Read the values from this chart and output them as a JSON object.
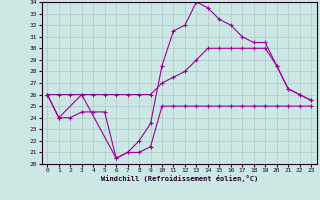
{
  "xlabel": "Windchill (Refroidissement éolien,°C)",
  "background_color": "#cce8e4",
  "grid_color": "#b0c8c8",
  "line_color": "#990099",
  "xlim": [
    -0.5,
    23.5
  ],
  "ylim": [
    20,
    34
  ],
  "yticks": [
    20,
    21,
    22,
    23,
    24,
    25,
    26,
    27,
    28,
    29,
    30,
    31,
    32,
    33,
    34
  ],
  "xticks": [
    0,
    1,
    2,
    3,
    4,
    5,
    6,
    7,
    8,
    9,
    10,
    11,
    12,
    13,
    14,
    15,
    16,
    17,
    18,
    19,
    20,
    21,
    22,
    23
  ],
  "s1_x": [
    0,
    1,
    2,
    3,
    4,
    5,
    6,
    7,
    8,
    9,
    10,
    11,
    12,
    13,
    14,
    15,
    16,
    17,
    18,
    19,
    20,
    21,
    22,
    23
  ],
  "s1_y": [
    26,
    24,
    24,
    24.5,
    24.5,
    24.5,
    20.5,
    21,
    21,
    21.5,
    25,
    25,
    25,
    25,
    25,
    25,
    25,
    25,
    25,
    25,
    25,
    25,
    25,
    25
  ],
  "s2_x": [
    0,
    1,
    2,
    3,
    4,
    5,
    6,
    7,
    8,
    9,
    10,
    11,
    12,
    13,
    14,
    15,
    16,
    17,
    18,
    19,
    20,
    21,
    22,
    23
  ],
  "s2_y": [
    26,
    26,
    26,
    26,
    26,
    26,
    26,
    26,
    26,
    26,
    27,
    27.5,
    28,
    29,
    30,
    30,
    30,
    30,
    30,
    30,
    28.5,
    26.5,
    26,
    25.5
  ],
  "s3_x": [
    0,
    1,
    3,
    6,
    7,
    8,
    9,
    10,
    11,
    12,
    13,
    14,
    15,
    16,
    17,
    18,
    19,
    20,
    21,
    22,
    23
  ],
  "s3_y": [
    26,
    24,
    26,
    20.5,
    21,
    22,
    23.5,
    28.5,
    31.5,
    32,
    34,
    33.5,
    32.5,
    32,
    31,
    30.5,
    30.5,
    28.5,
    26.5,
    26,
    25.5
  ]
}
